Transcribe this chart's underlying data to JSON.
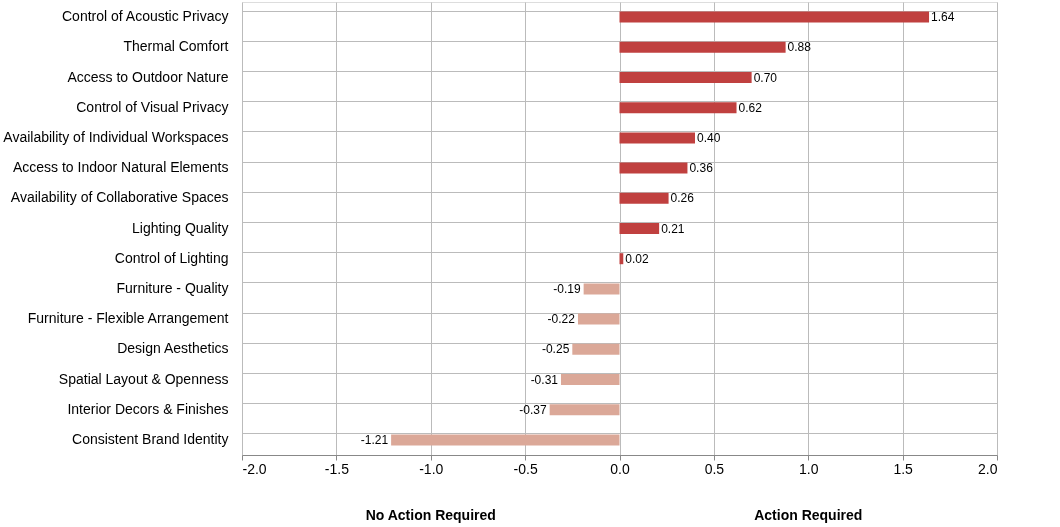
{
  "chart_data": {
    "type": "bar",
    "orientation": "horizontal",
    "categories": [
      "Control of Acoustic Privacy",
      "Thermal Comfort",
      "Access to Outdoor Nature",
      "Control of Visual Privacy",
      "Availability of Individual Workspaces",
      "Access to Indoor Natural Elements",
      "Availability of Collaborative Spaces",
      "Lighting Quality",
      "Control of Lighting",
      "Furniture - Quality",
      "Furniture - Flexible Arrangement",
      "Design Aesthetics",
      "Spatial Layout & Openness",
      "Interior Decors & Finishes",
      "Consistent Brand Identity"
    ],
    "values": [
      1.64,
      0.88,
      0.7,
      0.62,
      0.4,
      0.36,
      0.26,
      0.21,
      0.02,
      -0.19,
      -0.22,
      -0.25,
      -0.31,
      -0.37,
      -1.21
    ],
    "value_labels": [
      "1.64",
      "0.88",
      "0.70",
      "0.62",
      "0.40",
      "0.36",
      "0.26",
      "0.21",
      "0.02",
      "-0.19",
      "-0.22",
      "-0.25",
      "-0.31",
      "-0.37",
      "-1.21"
    ],
    "colors": [
      "#c0403f",
      "#c0403f",
      "#c0403f",
      "#c0403f",
      "#c0403f",
      "#c0403f",
      "#c0403f",
      "#c0403f",
      "#c0403f",
      "#dba898",
      "#dba898",
      "#dba898",
      "#dba898",
      "#dba898",
      "#dba898"
    ],
    "xlim": [
      -2.0,
      2.0
    ],
    "xticks": [
      {
        "value": -2.0,
        "label": "-2.0"
      },
      {
        "value": -1.5,
        "label": "-1.5"
      },
      {
        "value": -1.0,
        "label": "-1.0"
      },
      {
        "value": -0.5,
        "label": "-0.5"
      },
      {
        "value": 0.0,
        "label": "0.0"
      },
      {
        "value": 0.5,
        "label": "0.5"
      },
      {
        "value": 1.0,
        "label": "1.0"
      },
      {
        "value": 1.5,
        "label": "1.5"
      },
      {
        "value": 2.0,
        "label": "2.0"
      }
    ],
    "grid": true,
    "annotations": [
      "No Action Required",
      "Action Required"
    ]
  }
}
